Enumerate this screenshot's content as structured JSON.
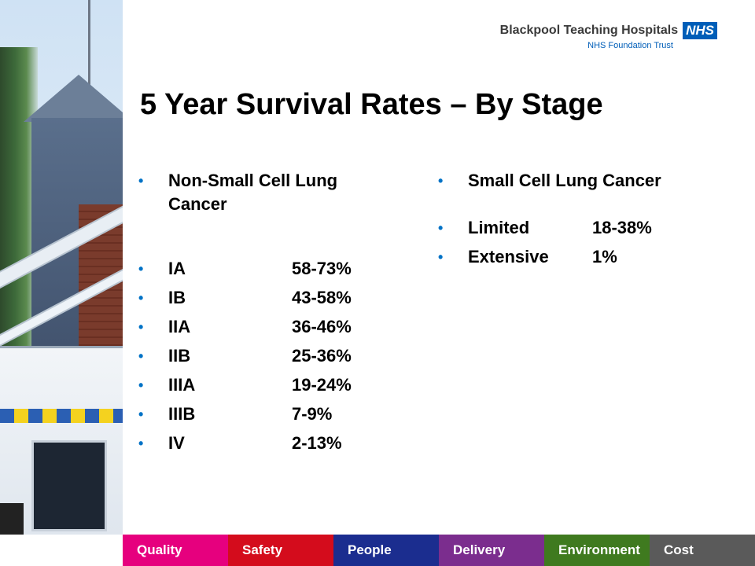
{
  "logo": {
    "name": "Blackpool Teaching Hospitals",
    "badge": "NHS",
    "subtitle": "NHS Foundation Trust",
    "badge_color": "#005eb8"
  },
  "slide": {
    "title": "5 Year Survival Rates – By Stage"
  },
  "left_column": {
    "heading": "Non-Small Cell Lung Cancer",
    "rows": [
      {
        "stage": "IA",
        "rate": "58-73%"
      },
      {
        "stage": "IB",
        "rate": "43-58%"
      },
      {
        "stage": "IIA",
        "rate": "36-46%"
      },
      {
        "stage": "IIB",
        "rate": "25-36%"
      },
      {
        "stage": "IIIA",
        "rate": "19-24%"
      },
      {
        "stage": "IIIB",
        "rate": "7-9%"
      },
      {
        "stage": "IV",
        "rate": "2-13%"
      }
    ]
  },
  "right_column": {
    "heading": "Small Cell Lung Cancer",
    "rows": [
      {
        "stage": "Limited",
        "rate": "18-38%"
      },
      {
        "stage": "Extensive",
        "rate": "1%"
      }
    ]
  },
  "bullet_char": "•",
  "bullet_color": "#0072c6",
  "nav": [
    {
      "label": "Quality",
      "color": "#e6007e"
    },
    {
      "label": "Safety",
      "color": "#d40c1c"
    },
    {
      "label": "People",
      "color": "#1b2d8f"
    },
    {
      "label": "Delivery",
      "color": "#7b2d8e"
    },
    {
      "label": "Environment",
      "color": "#3f7a1f"
    },
    {
      "label": "Cost",
      "color": "#5a5a5a"
    }
  ]
}
